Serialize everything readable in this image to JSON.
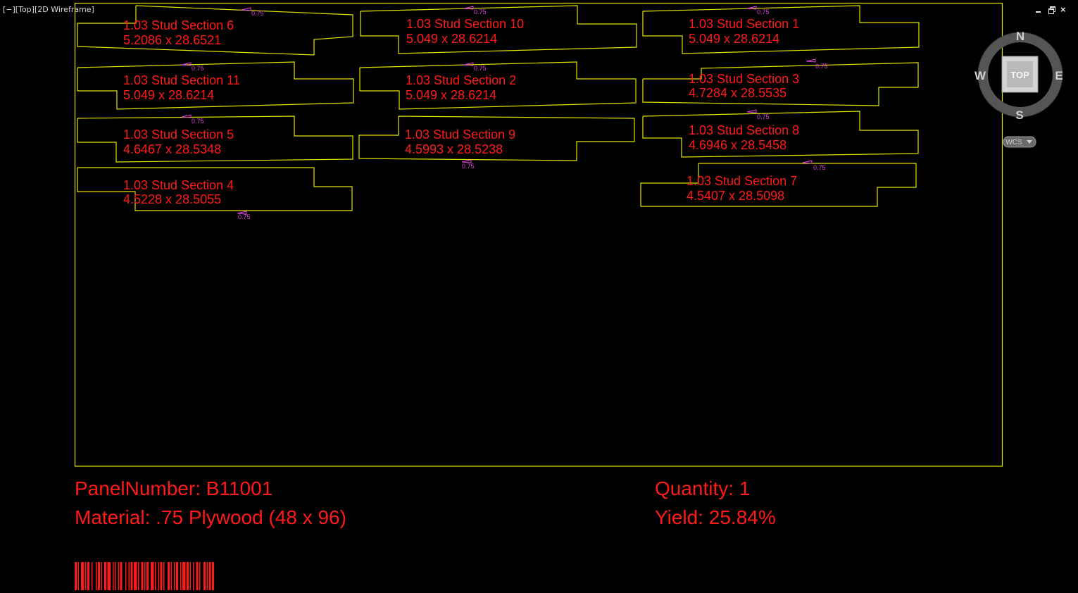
{
  "viewport": {
    "label": "[−][Top][2D Wireframe]"
  },
  "window_controls": {
    "close_glyph": "×"
  },
  "parts": [
    {
      "name": "1.03 Stud Section 6",
      "dims": "5.2086 x 28.6521",
      "thickness": "0.75"
    },
    {
      "name": "1.03 Stud Section 10",
      "dims": "5.049 x 28.6214",
      "thickness": "0.75"
    },
    {
      "name": "1.03 Stud Section 1",
      "dims": "5.049 x 28.6214",
      "thickness": "0.75"
    },
    {
      "name": "1.03 Stud Section 11",
      "dims": "5.049 x 28.6214",
      "thickness": "0.75"
    },
    {
      "name": "1.03 Stud Section 2",
      "dims": "5.049 x 28.6214",
      "thickness": "0.75"
    },
    {
      "name": "1.03 Stud Section 3",
      "dims": "4.7284 x 28.5535",
      "thickness": "0.75"
    },
    {
      "name": "1.03 Stud Section 5",
      "dims": "4.6467 x 28.5348",
      "thickness": "0.75"
    },
    {
      "name": "1.03 Stud Section 9",
      "dims": "4.5993 x 28.5238",
      "thickness": "0.75"
    },
    {
      "name": "1.03 Stud Section 8",
      "dims": "4.6946 x 28.5458",
      "thickness": "0.75"
    },
    {
      "name": "1.03 Stud Section 4",
      "dims": "4.5228 x 28.5055",
      "thickness": "0.75"
    },
    {
      "name": "1.03 Stud Section 7",
      "dims": "4.5407 x 28.5098",
      "thickness": "0.75"
    }
  ],
  "panel_info": {
    "panel_number": "PanelNumber: B11001",
    "material": "Material: .75 Plywood (48 x 96)",
    "quantity": "Quantity: 1",
    "yield": "Yield: 25.84%"
  },
  "viewcube": {
    "north": "N",
    "south": "S",
    "east": "E",
    "west": "W",
    "face": "TOP",
    "wcs": "WCS"
  },
  "colors": {
    "background": "#000000",
    "outline": "#e4e400",
    "text": "#ff1a1a",
    "annotation": "#e040e0"
  }
}
